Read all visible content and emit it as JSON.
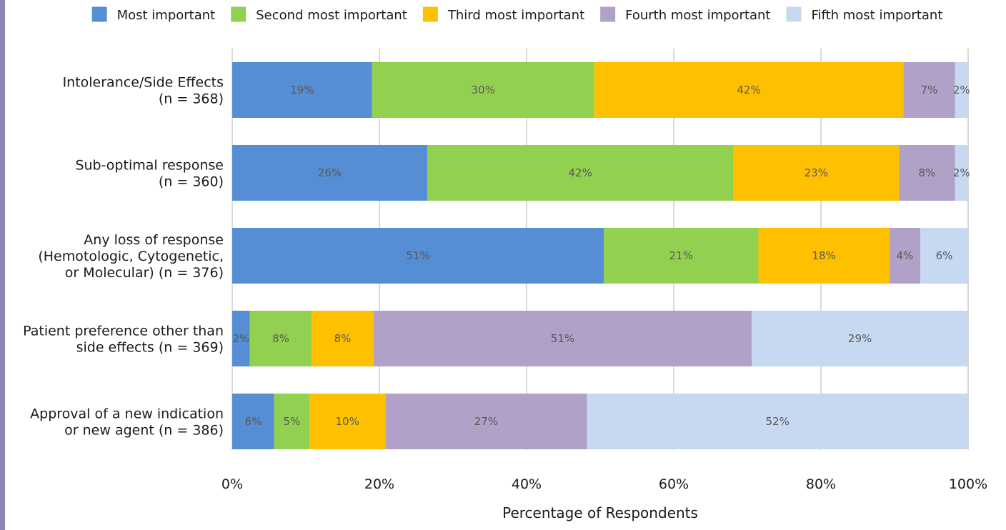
{
  "chart_data": {
    "type": "bar",
    "orientation": "horizontal",
    "stacked": true,
    "title": "",
    "xlabel": "Percentage of Respondents",
    "ylabel": "",
    "xlim": [
      0,
      100
    ],
    "x_ticks": [
      "0%",
      "20%",
      "40%",
      "60%",
      "80%",
      "100%"
    ],
    "grid": true,
    "legend_position": "top",
    "categories": [
      [
        "Intolerance/Side Effects",
        "(n = 368)"
      ],
      [
        "Sub-optimal response",
        "(n = 360)"
      ],
      [
        "Any loss of response",
        "(Hemotologic, Cytogenetic,",
        "or Molecular) (n = 376)"
      ],
      [
        "Patient preference other than",
        "side effects (n = 369)"
      ],
      [
        "Approval of a new indication",
        "or new agent (n = 386)"
      ]
    ],
    "series": [
      {
        "name": "Most important",
        "color": "#558ed5",
        "values": [
          19,
          26.5,
          50.5,
          2.4,
          5.7
        ],
        "labels": [
          "19%",
          "26%",
          "51%",
          "2%",
          "6%"
        ]
      },
      {
        "name": "Second most important",
        "color": "#92d050",
        "values": [
          30.2,
          41.6,
          21,
          8.4,
          4.8
        ],
        "labels": [
          "30%",
          "42%",
          "21%",
          "8%",
          "5%"
        ]
      },
      {
        "name": "Third most important",
        "color": "#ffc000",
        "values": [
          42,
          22.5,
          17.8,
          8.4,
          10.3
        ],
        "labels": [
          "42%",
          "23%",
          "18%",
          "8%",
          "10%"
        ]
      },
      {
        "name": "Fourth most important",
        "color": "#b1a0c7",
        "values": [
          7,
          7.6,
          4.2,
          51.4,
          27.4
        ],
        "labels": [
          "7%",
          "8%",
          "4%",
          "51%",
          "27%"
        ]
      },
      {
        "name": "Fifth most important",
        "color": "#c6d9f0",
        "values": [
          1.8,
          1.8,
          6.5,
          29.4,
          51.8
        ],
        "labels": [
          "2%",
          "2%",
          "6%",
          "29%",
          "52%"
        ]
      }
    ]
  }
}
